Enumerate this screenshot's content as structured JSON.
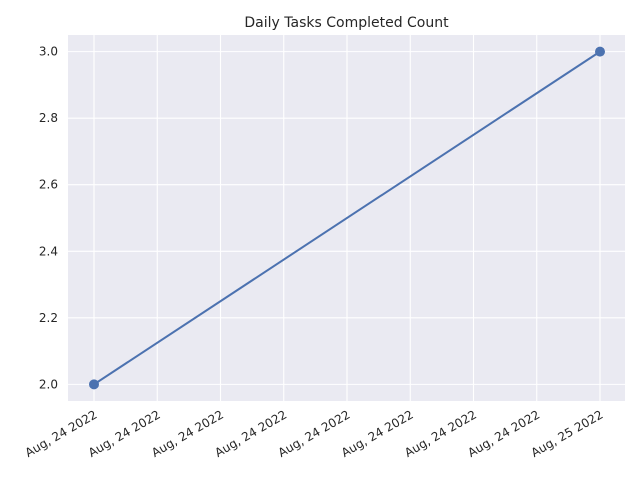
{
  "chart_data": {
    "type": "line",
    "title": "Daily Tasks Completed Count",
    "xlabel": "",
    "ylabel": "",
    "x": [
      "2022-08-24",
      "2022-08-25"
    ],
    "x_tick_labels": [
      "Aug, 24 2022",
      "Aug, 24 2022",
      "Aug, 24 2022",
      "Aug, 24 2022",
      "Aug, 24 2022",
      "Aug, 24 2022",
      "Aug, 24 2022",
      "Aug, 24 2022",
      "Aug, 25 2022"
    ],
    "y_tick_labels": [
      "2.0",
      "2.2",
      "2.4",
      "2.6",
      "2.8",
      "3.0"
    ],
    "series": [
      {
        "values": [
          2,
          3
        ],
        "color": "#4c72b0"
      }
    ],
    "ylim": [
      1.95,
      3.05
    ],
    "y_ticks": [
      2.0,
      2.2,
      2.4,
      2.6,
      2.8,
      3.0
    ],
    "grid": true,
    "style_colors": {
      "plot_background": "#eaeaf2",
      "grid": "#ffffff",
      "text": "#262626"
    }
  }
}
